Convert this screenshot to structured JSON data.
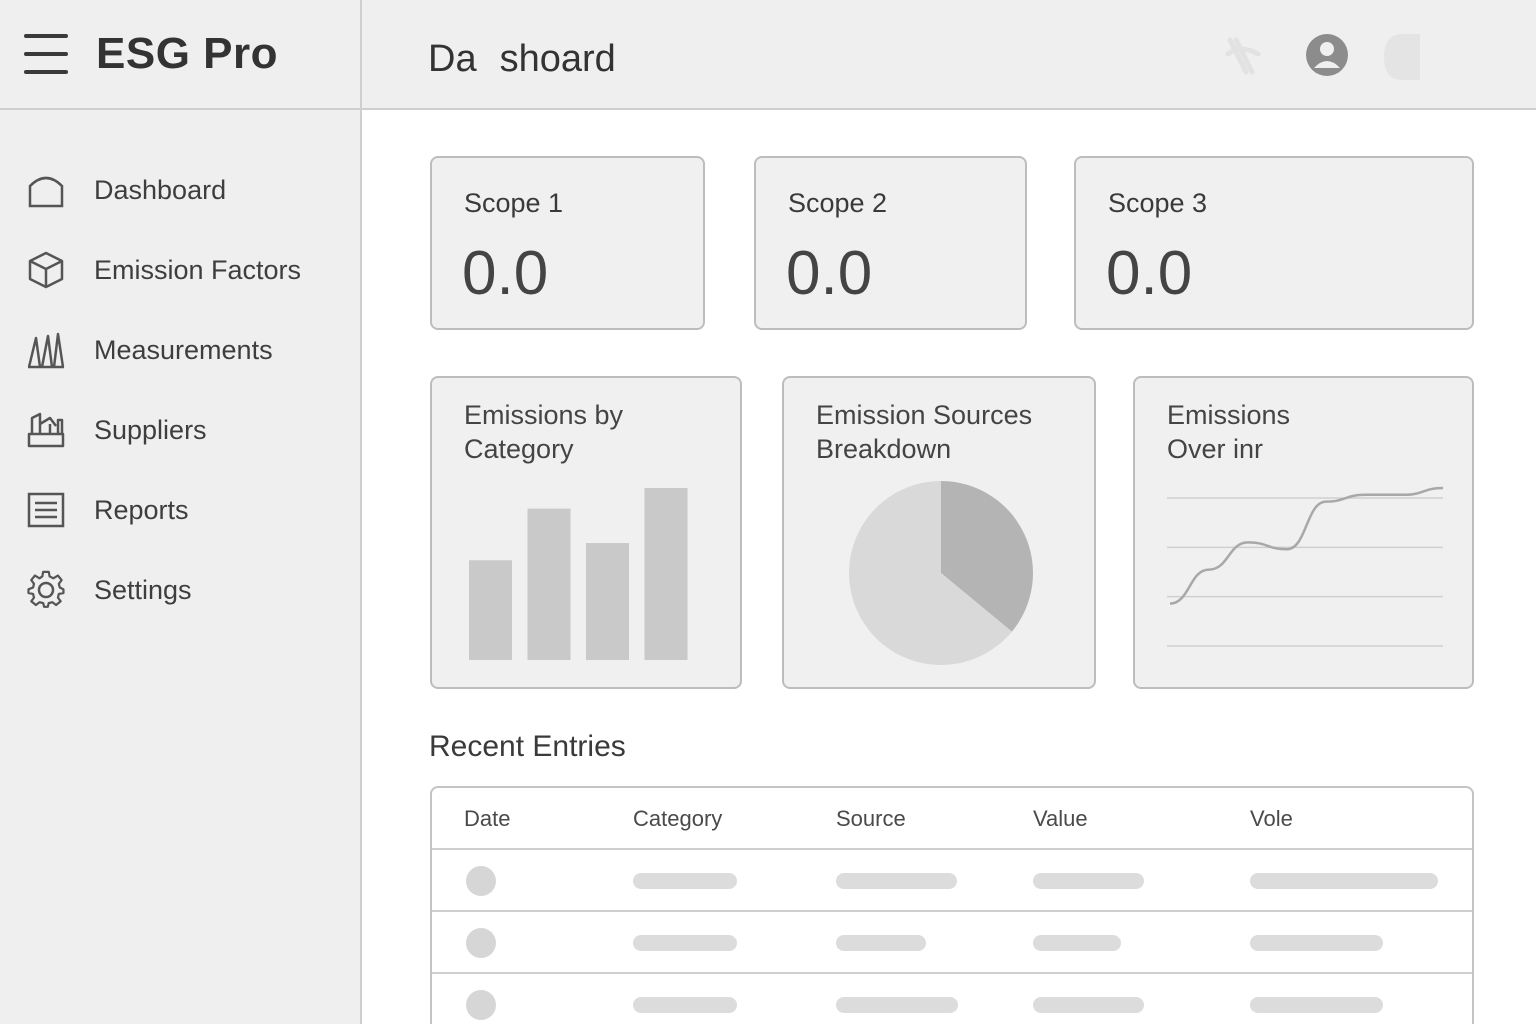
{
  "app": {
    "title": "ESG Pro"
  },
  "header": {
    "title": "Dashoard"
  },
  "sidebar": {
    "items": [
      {
        "label": "Dashboard",
        "icon": "home-icon"
      },
      {
        "label": "Emission Factors",
        "icon": "cube-icon"
      },
      {
        "label": "Measurements",
        "icon": "bar-measure-icon"
      },
      {
        "label": "Suppliers",
        "icon": "factory-icon"
      },
      {
        "label": "Reports",
        "icon": "report-icon"
      },
      {
        "label": "Settings",
        "icon": "gear-icon"
      }
    ]
  },
  "scopes": [
    {
      "label": "Scope 1",
      "value": "0.0"
    },
    {
      "label": "Scope 2",
      "value": "0.0"
    },
    {
      "label": "Scope 3",
      "value": "0.0"
    }
  ],
  "charts": {
    "category": {
      "title": "Emissions by\nCategory"
    },
    "sources": {
      "title": "Emission Sources\nBreakdown"
    },
    "time": {
      "title": "Emissions\nOver inr"
    }
  },
  "chart_data": [
    {
      "type": "bar",
      "title": "Emissions by Category",
      "categories": [
        "",
        "",
        "",
        ""
      ],
      "values": [
        0.58,
        0.88,
        0.68,
        1.0
      ]
    },
    {
      "type": "pie",
      "title": "Emission Sources Breakdown",
      "values": [
        0.36,
        0.64
      ]
    },
    {
      "type": "line",
      "title": "Emissions Over inr",
      "x": [
        0,
        1,
        2,
        3,
        4,
        5,
        6,
        7
      ],
      "values": [
        0.15,
        0.4,
        0.6,
        0.55,
        0.9,
        0.95,
        0.95,
        1.0
      ]
    }
  ],
  "recent": {
    "title": "Recent Entries",
    "columns": [
      "Date",
      "Category",
      "Source",
      "Value",
      "Vole"
    ],
    "row_count": 3
  },
  "colors": {
    "bar": "#c9c9c9",
    "pie_light": "#d9d9d9",
    "pie_dark": "#b4b4b4",
    "line": "#a8a8a8"
  }
}
